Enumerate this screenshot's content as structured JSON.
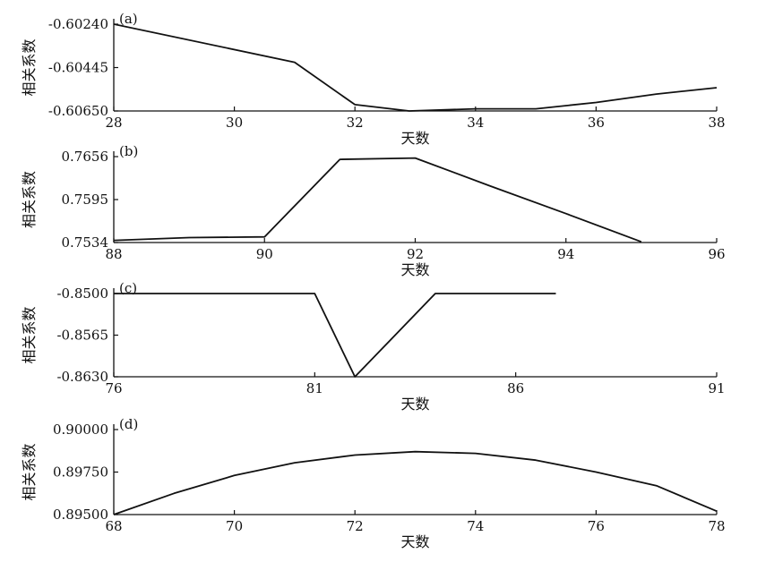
{
  "chart_data": [
    {
      "type": "line",
      "panel_label": "(a)",
      "xlabel": "天数",
      "ylabel": "相关系数",
      "xlim": [
        28,
        38
      ],
      "ylim": [
        -0.6065,
        -0.6024
      ],
      "x_ticks": [
        28,
        30,
        32,
        34,
        36,
        38
      ],
      "x_tick_labels": [
        "28",
        "30",
        "32",
        "34",
        "36",
        "38"
      ],
      "y_ticks": [
        -0.6024,
        -0.60445,
        -0.6065
      ],
      "y_tick_labels": [
        "-0.60240",
        "-0.60445",
        "-0.60650"
      ],
      "grid": false,
      "series": [
        {
          "x": [
            28,
            31,
            32,
            32.9,
            34,
            35,
            36,
            37,
            38
          ],
          "y": [
            -0.6024,
            -0.6042,
            -0.6062,
            -0.6065,
            -0.6064,
            -0.6064,
            -0.6061,
            -0.6057,
            -0.6054
          ]
        }
      ]
    },
    {
      "type": "line",
      "panel_label": "(b)",
      "xlabel": "天数",
      "ylabel": "相关系数",
      "xlim": [
        88,
        96
      ],
      "ylim": [
        0.7534,
        0.7656
      ],
      "x_ticks": [
        88,
        90,
        92,
        94,
        96
      ],
      "x_tick_labels": [
        "88",
        "90",
        "92",
        "94",
        "96"
      ],
      "y_ticks": [
        0.7656,
        0.7595,
        0.7534
      ],
      "y_tick_labels": [
        "0.7656",
        "0.7595",
        "0.7534"
      ],
      "grid": false,
      "series": [
        {
          "x": [
            88,
            89,
            90,
            91,
            92,
            93,
            94,
            95
          ],
          "y": [
            0.7537,
            0.7541,
            0.7542,
            0.7652,
            0.7654,
            0.7614,
            0.7575,
            0.7535
          ]
        }
      ]
    },
    {
      "type": "line",
      "panel_label": "(c)",
      "xlabel": "天数",
      "ylabel": "相关系数",
      "xlim": [
        76,
        91
      ],
      "ylim": [
        -0.863,
        -0.85
      ],
      "x_ticks": [
        76,
        81,
        86,
        91
      ],
      "x_tick_labels": [
        "76",
        "81",
        "86",
        "91"
      ],
      "y_ticks": [
        -0.85,
        -0.8565,
        -0.863
      ],
      "y_tick_labels": [
        "-0.8500",
        "-0.8565",
        "-0.8630"
      ],
      "grid": false,
      "series": [
        {
          "x": [
            76,
            81,
            82,
            83,
            84,
            85,
            86,
            87
          ],
          "y": [
            -0.85,
            -0.85,
            -0.863,
            -0.8565,
            -0.85,
            -0.85,
            -0.85,
            -0.85
          ]
        }
      ]
    },
    {
      "type": "line",
      "panel_label": "(d)",
      "xlabel": "天数",
      "ylabel": "相关系数",
      "xlim": [
        68,
        78
      ],
      "ylim": [
        0.895,
        0.9
      ],
      "x_ticks": [
        68,
        70,
        72,
        74,
        76,
        78
      ],
      "x_tick_labels": [
        "68",
        "70",
        "72",
        "74",
        "76",
        "78"
      ],
      "y_ticks": [
        0.9,
        0.8975,
        0.895
      ],
      "y_tick_labels": [
        "0.90000",
        "0.89750",
        "0.89500"
      ],
      "grid": false,
      "series": [
        {
          "x": [
            68,
            69,
            70,
            71,
            72,
            73,
            74,
            75,
            76,
            77,
            78
          ],
          "y": [
            0.895,
            0.89625,
            0.8973,
            0.89805,
            0.8985,
            0.8987,
            0.8986,
            0.8982,
            0.8975,
            0.8967,
            0.8952
          ]
        }
      ]
    }
  ]
}
